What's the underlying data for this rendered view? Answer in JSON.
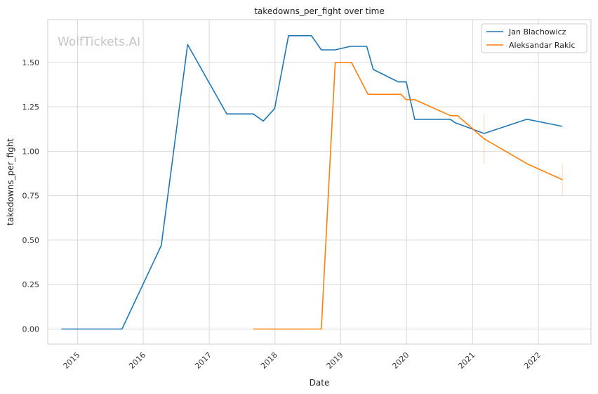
{
  "chart_data": {
    "type": "line",
    "title": "takedowns_per_fight over time",
    "xlabel": "Date",
    "ylabel": "takedowns_per_fight",
    "watermark": "WolfTickets.AI",
    "x_range": [
      "2014-07-20",
      "2022-10-20"
    ],
    "ylim": [
      -0.085,
      1.74
    ],
    "x_ticks": [
      {
        "date": "2015-01-01",
        "label": "2015"
      },
      {
        "date": "2016-01-01",
        "label": "2016"
      },
      {
        "date": "2017-01-01",
        "label": "2017"
      },
      {
        "date": "2018-01-01",
        "label": "2018"
      },
      {
        "date": "2019-01-01",
        "label": "2019"
      },
      {
        "date": "2020-01-01",
        "label": "2020"
      },
      {
        "date": "2021-01-01",
        "label": "2021"
      },
      {
        "date": "2022-01-01",
        "label": "2022"
      }
    ],
    "y_ticks": [
      {
        "value": 0.0,
        "label": "0.00"
      },
      {
        "value": 0.25,
        "label": "0.25"
      },
      {
        "value": 0.5,
        "label": "0.50"
      },
      {
        "value": 0.75,
        "label": "0.75"
      },
      {
        "value": 1.0,
        "label": "1.00"
      },
      {
        "value": 1.25,
        "label": "1.25"
      },
      {
        "value": 1.5,
        "label": "1.50"
      }
    ],
    "grid": true,
    "legend_position": "top-right",
    "series": [
      {
        "name": "Jan Blachowicz",
        "color": "#1f77b4",
        "points": [
          {
            "x": "2014-10-04",
            "y": 0.0
          },
          {
            "x": "2015-09-05",
            "y": 0.0
          },
          {
            "x": "2016-04-10",
            "y": 0.47
          },
          {
            "x": "2016-09-03",
            "y": 1.6
          },
          {
            "x": "2017-04-08",
            "y": 1.21
          },
          {
            "x": "2017-09-02",
            "y": 1.21
          },
          {
            "x": "2017-10-28",
            "y": 1.17
          },
          {
            "x": "2017-12-30",
            "y": 1.24
          },
          {
            "x": "2018-03-17",
            "y": 1.65
          },
          {
            "x": "2018-07-22",
            "y": 1.65
          },
          {
            "x": "2018-09-15",
            "y": 1.57
          },
          {
            "x": "2018-12-01",
            "y": 1.57
          },
          {
            "x": "2019-02-23",
            "y": 1.59
          },
          {
            "x": "2019-05-25",
            "y": 1.59
          },
          {
            "x": "2019-06-30",
            "y": 1.46
          },
          {
            "x": "2019-11-16",
            "y": 1.39
          },
          {
            "x": "2019-12-30",
            "y": 1.39
          },
          {
            "x": "2020-02-15",
            "y": 1.18
          },
          {
            "x": "2020-08-30",
            "y": 1.18
          },
          {
            "x": "2020-09-27",
            "y": 1.16
          },
          {
            "x": "2021-03-06",
            "y": 1.1
          },
          {
            "x": "2021-10-30",
            "y": 1.18
          },
          {
            "x": "2022-05-14",
            "y": 1.14
          }
        ]
      },
      {
        "name": "Aleksandar Rakic",
        "color": "#ff7f0e",
        "points": [
          {
            "x": "2017-09-02",
            "y": 0.0
          },
          {
            "x": "2018-09-15",
            "y": 0.0
          },
          {
            "x": "2018-12-01",
            "y": 1.5
          },
          {
            "x": "2019-03-01",
            "y": 1.5
          },
          {
            "x": "2019-06-01",
            "y": 1.32
          },
          {
            "x": "2019-12-01",
            "y": 1.32
          },
          {
            "x": "2019-12-30",
            "y": 1.29
          },
          {
            "x": "2020-02-15",
            "y": 1.29
          },
          {
            "x": "2020-09-01",
            "y": 1.2
          },
          {
            "x": "2020-10-10",
            "y": 1.2
          },
          {
            "x": "2021-03-06",
            "y": 1.07
          },
          {
            "x": "2021-10-30",
            "y": 0.93
          },
          {
            "x": "2022-05-14",
            "y": 0.84
          }
        ]
      }
    ]
  }
}
